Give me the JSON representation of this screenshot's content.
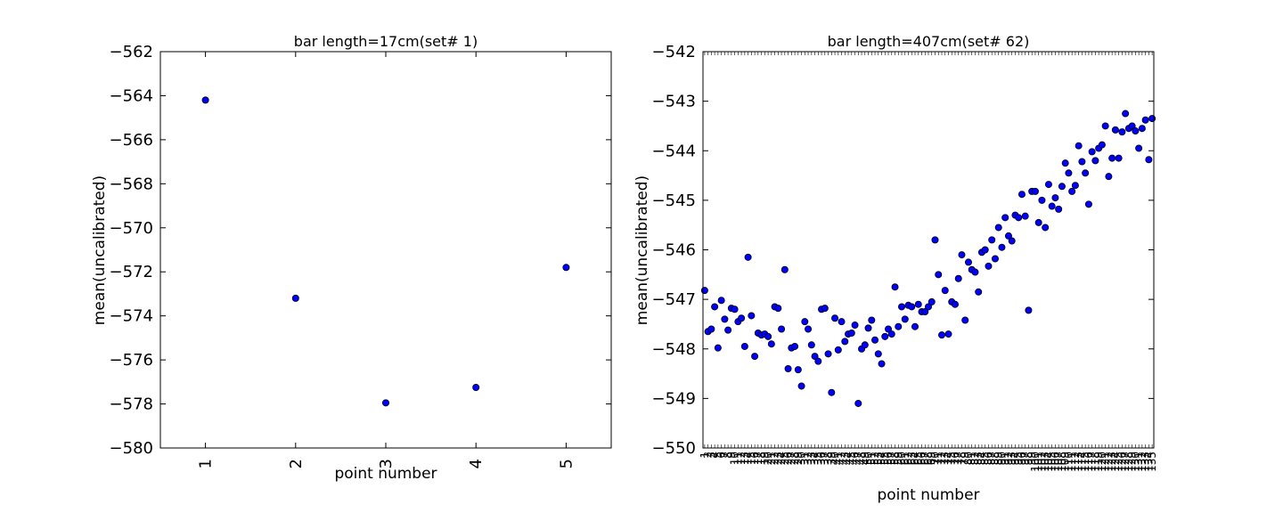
{
  "chart_data": [
    {
      "type": "scatter",
      "title": "bar length=17cm(set# 1)",
      "xlabel": "point number",
      "ylabel": "mean(uncalibrated)",
      "xlim": [
        0.5,
        5.5
      ],
      "ylim": [
        -580,
        -562
      ],
      "xticks": [
        1,
        2,
        3,
        4,
        5
      ],
      "yticks": [
        -580,
        -578,
        -576,
        -574,
        -572,
        -570,
        -568,
        -566,
        -564,
        -562
      ],
      "ytick_labels": [
        "−580",
        "−578",
        "−576",
        "−574",
        "−572",
        "−570",
        "−568",
        "−566",
        "−564",
        "−562"
      ],
      "grid": false,
      "marker_color": "#0000ff",
      "points": [
        {
          "x": 1,
          "y": -564.2
        },
        {
          "x": 2,
          "y": -573.2
        },
        {
          "x": 3,
          "y": -577.95
        },
        {
          "x": 4,
          "y": -577.25
        },
        {
          "x": 5,
          "y": -571.8
        }
      ]
    },
    {
      "type": "scatter",
      "title": "bar length=407cm(set# 62)",
      "xlabel": "point number",
      "ylabel": "mean(uncalibrated)",
      "xlim": [
        0.5,
        135.5
      ],
      "ylim": [
        -550,
        -542
      ],
      "yticks": [
        -550,
        -549,
        -548,
        -547,
        -546,
        -545,
        -544,
        -543,
        -542
      ],
      "ytick_labels": [
        "−550",
        "−549",
        "−548",
        "−547",
        "−546",
        "−545",
        "−544",
        "−543",
        "−542"
      ],
      "grid": false,
      "marker_color": "#0000ff",
      "y": [
        -546.82,
        -547.65,
        -547.6,
        -547.15,
        -547.98,
        -547.02,
        -547.4,
        -547.62,
        -547.18,
        -547.2,
        -547.45,
        -547.38,
        -547.95,
        -546.15,
        -547.33,
        -548.15,
        -547.68,
        -547.72,
        -547.7,
        -547.75,
        -547.9,
        -547.15,
        -547.18,
        -547.6,
        -546.4,
        -548.4,
        -547.98,
        -547.95,
        -548.42,
        -548.75,
        -547.45,
        -547.6,
        -547.92,
        -548.15,
        -548.25,
        -547.2,
        -547.18,
        -548.1,
        -548.88,
        -547.38,
        -548.02,
        -547.45,
        -547.85,
        -547.7,
        -547.68,
        -547.52,
        -549.1,
        -548.0,
        -547.92,
        -547.58,
        -547.42,
        -547.82,
        -548.1,
        -548.3,
        -547.75,
        -547.6,
        -547.7,
        -546.75,
        -547.55,
        -547.15,
        -547.4,
        -547.12,
        -547.15,
        -547.55,
        -547.1,
        -547.25,
        -547.25,
        -547.15,
        -547.05,
        -545.8,
        -546.5,
        -547.72,
        -546.82,
        -547.7,
        -547.05,
        -547.1,
        -546.58,
        -546.1,
        -547.42,
        -546.25,
        -546.4,
        -546.45,
        -546.85,
        -546.05,
        -546.0,
        -546.33,
        -545.8,
        -546.18,
        -545.55,
        -545.95,
        -545.35,
        -545.72,
        -545.82,
        -545.3,
        -545.35,
        -544.88,
        -545.32,
        -547.22,
        -544.82,
        -544.82,
        -545.45,
        -545.0,
        -545.55,
        -544.68,
        -545.12,
        -544.95,
        -545.18,
        -544.72,
        -544.25,
        -544.45,
        -544.82,
        -544.7,
        -543.9,
        -544.22,
        -544.45,
        -545.08,
        -544.02,
        -544.2,
        -543.95,
        -543.88,
        -543.5,
        -544.52,
        -544.15,
        -543.58,
        -544.15,
        -543.62,
        -543.25,
        -543.55,
        -543.5,
        -543.6,
        -543.95,
        -543.55,
        -543.38,
        -544.18,
        -543.35
      ]
    }
  ]
}
